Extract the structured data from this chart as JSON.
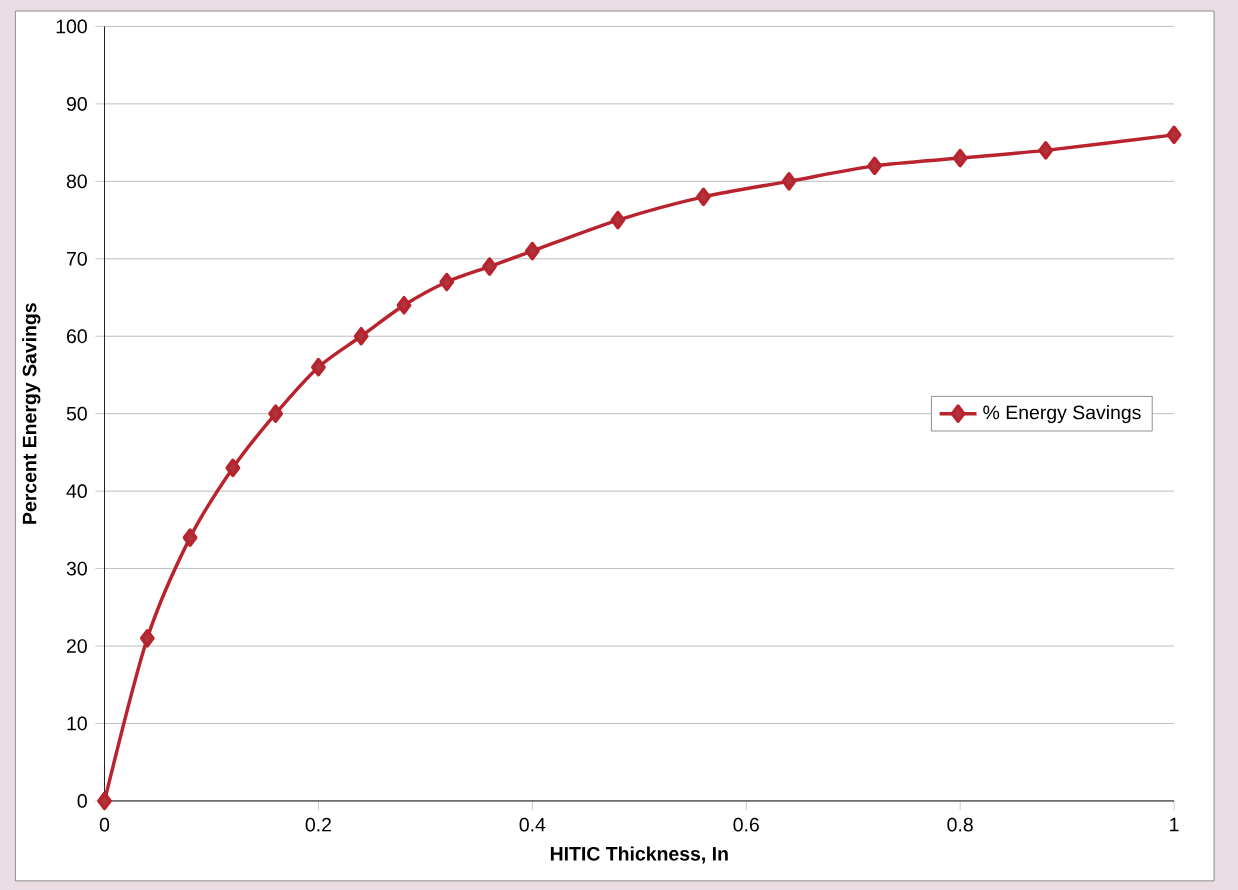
{
  "chart_data": {
    "type": "line",
    "xlabel": "HITIC Thickness, In",
    "ylabel": "Percent Energy Savings",
    "x": [
      0,
      0.04,
      0.08,
      0.12,
      0.16,
      0.2,
      0.24,
      0.28,
      0.32,
      0.36,
      0.4,
      0.48,
      0.56,
      0.64,
      0.72,
      0.8,
      0.88,
      1.0
    ],
    "series": [
      {
        "name": "% Energy Savings",
        "color": "#b8232e",
        "values": [
          0,
          21,
          34,
          43,
          50,
          56,
          60,
          64,
          67,
          69,
          71,
          75,
          78,
          80,
          82,
          83,
          84,
          86
        ]
      }
    ],
    "xlim": [
      0,
      1
    ],
    "xticks": [
      0,
      0.2,
      0.4,
      0.6,
      0.8,
      1
    ],
    "ylim": [
      0,
      100
    ],
    "yticks": [
      0,
      10,
      20,
      30,
      40,
      50,
      60,
      70,
      80,
      90,
      100
    ],
    "grid": "y",
    "legend": "right",
    "marker": "diamond",
    "line_style": "solid"
  }
}
